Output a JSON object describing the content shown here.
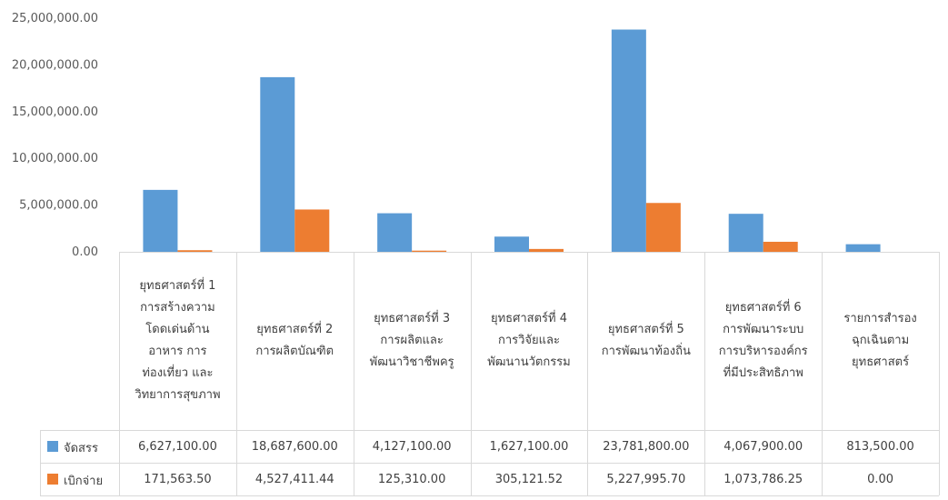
{
  "chart_data": {
    "type": "bar",
    "categories": [
      "ยุทธศาสตร์ที่ 1\nการสร้างความ\nโดดเด่นด้าน\nอาหาร การ\nท่องเที่ยว และ\nวิทยาการสุขภาพ",
      "ยุทธศาสตร์ที่ 2\nการผลิตบัณฑิต",
      "ยุทธศาสตร์ที่ 3\nการผลิตและ\nพัฒนาวิชาชีพครู",
      "ยุทธศาสตร์ที่ 4\nการวิจัยและ\nพัฒนานวัตกรรม",
      "ยุทธศาสตร์ที่ 5\nการพัฒนาท้องถิ่น",
      "ยุทธศาสตร์ที่ 6\nการพัฒนาระบบ\nการบริหารองค์กร\nที่มีประสิทธิภาพ",
      "รายการสำรอง\nฉุกเฉินตาม\nยุทธศาสตร์"
    ],
    "series": [
      {
        "name": "จัดสรร",
        "color": "#5B9BD5",
        "values": [
          6627100.0,
          18687600.0,
          4127100.0,
          1627100.0,
          23781800.0,
          4067900.0,
          813500.0
        ],
        "labels": [
          "6,627,100.00",
          "18,687,600.00",
          "4,127,100.00",
          "1,627,100.00",
          "23,781,800.00",
          "4,067,900.00",
          "813,500.00"
        ]
      },
      {
        "name": "เบิกจ่าย",
        "color": "#ED7D31",
        "values": [
          171563.5,
          4527411.44,
          125310.0,
          305121.52,
          5227995.7,
          1073786.25,
          0.0
        ],
        "labels": [
          "171,563.50",
          "4,527,411.44",
          "125,310.00",
          "305,121.52",
          "5,227,995.70",
          "1,073,786.25",
          "0.00"
        ]
      }
    ],
    "yticks": [
      "0.00",
      "5,000,000.00",
      "10,000,000.00",
      "15,000,000.00",
      "20,000,000.00",
      "25,000,000.00"
    ],
    "ylim": [
      0,
      25000000
    ],
    "grid": false,
    "legend": "data-table"
  }
}
